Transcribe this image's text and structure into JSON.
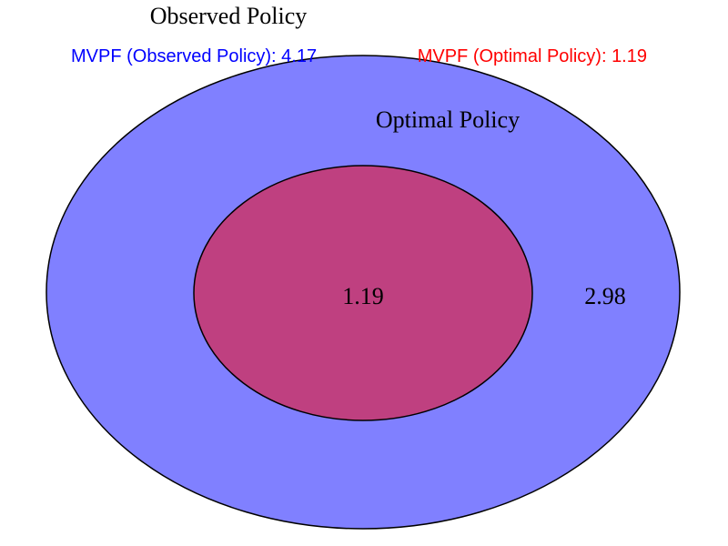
{
  "diagram": {
    "sets": [
      {
        "label": "Observed Policy",
        "region_value": "2.98",
        "fill": "#8080ff"
      },
      {
        "label": "Optimal Policy",
        "region_value": "1.19",
        "fill": "#bf4080"
      }
    ],
    "legend": [
      {
        "text": "MVPF (Observed Policy): 4.17",
        "color": "#0000ff"
      },
      {
        "text": "MVPF (Optimal Policy): 1.19",
        "color": "#ff0000"
      }
    ],
    "outline_color": "#000000"
  }
}
